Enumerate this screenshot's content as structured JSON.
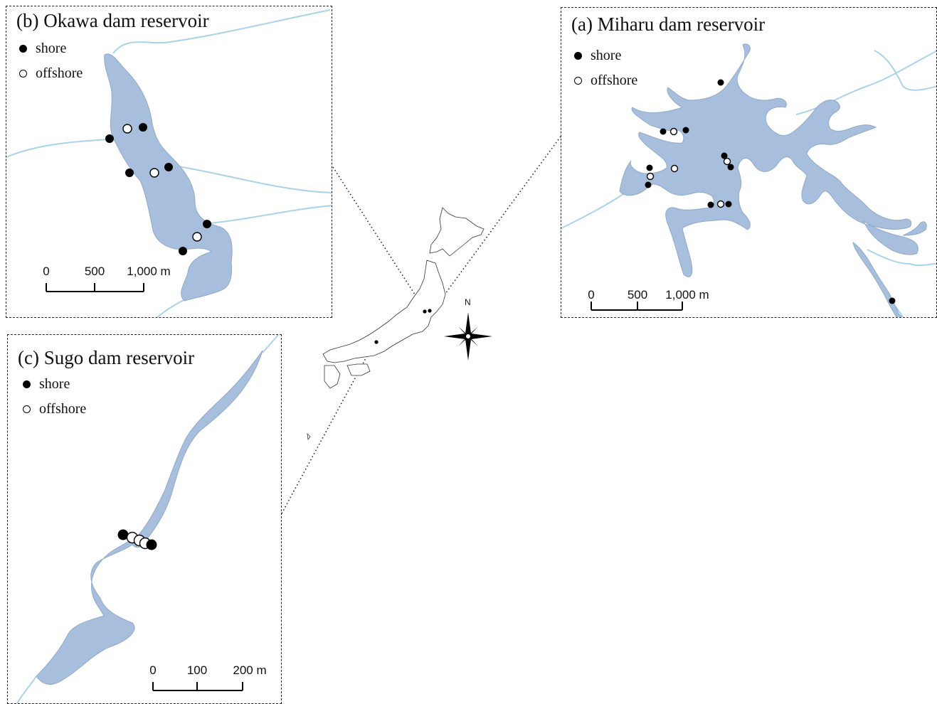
{
  "panels": {
    "miharu": {
      "title": "(a) Miharu dam reservoir",
      "legend": {
        "shore": "shore",
        "offshore": "offshore"
      },
      "scale": {
        "labels": [
          "0",
          "500",
          "1,000 m"
        ]
      }
    },
    "okawa": {
      "title": "(b) Okawa dam reservoir",
      "legend": {
        "shore": "shore",
        "offshore": "offshore"
      },
      "scale": {
        "labels": [
          "0",
          "500",
          "1,000 m"
        ]
      }
    },
    "sugo": {
      "title": "(c) Sugo dam reservoir",
      "legend": {
        "shore": "shore",
        "offshore": "offshore"
      },
      "scale": {
        "labels": [
          "0",
          "100",
          "200 m"
        ]
      }
    }
  },
  "compass": {
    "north_label": "N"
  },
  "colors": {
    "water": "#a7bfdc",
    "water_edge": "#8fa9c9",
    "river": "#a9d3ea",
    "ink": "#000000"
  }
}
